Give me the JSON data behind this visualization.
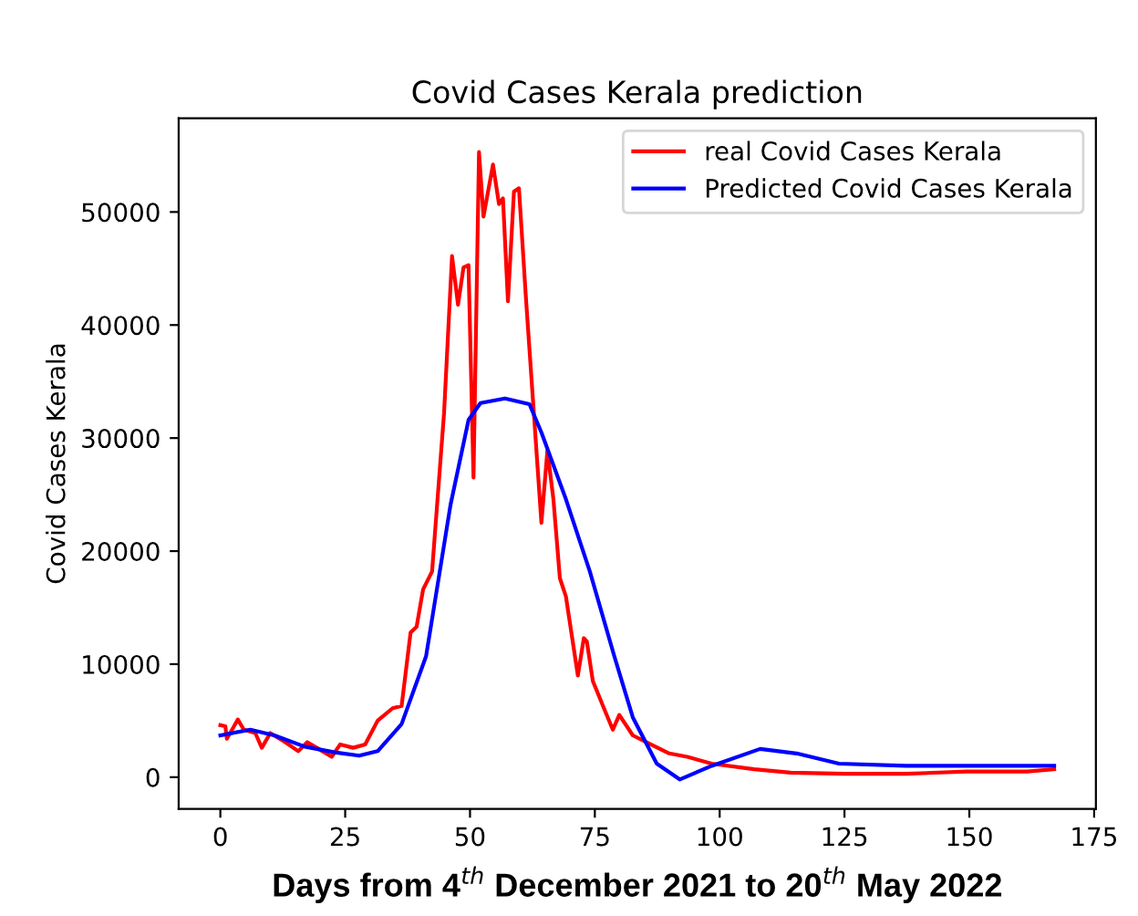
{
  "chart_data": {
    "type": "line",
    "title": "Covid Cases Kerala prediction",
    "xlabel": "Days from 4$^{th}$ December 2021 to 20$^{th}$ May 2022",
    "ylabel": "Covid Cases Kerala",
    "xlim": [
      -8.35,
      175.35
    ],
    "xticks": [
      0,
      25,
      50,
      75,
      100,
      125,
      150,
      175
    ],
    "ylim": [
      -2800,
      58300
    ],
    "yticks": [
      0,
      10000,
      20000,
      30000,
      40000,
      50000
    ],
    "grid": false,
    "legend": "top right",
    "marker": "none",
    "line_style": "solid",
    "series": [
      {
        "name": "real Covid Cases Kerala",
        "color": "#ff0000",
        "x": [
          0,
          1,
          1.3,
          3.5,
          4.7,
          7,
          8.3,
          10,
          13,
          15.6,
          17.4,
          19.3,
          22.3,
          24,
          26.6,
          29,
          31.5,
          34.5,
          36.3,
          38.1,
          39.3,
          40.6,
          42.4,
          44.8,
          46.4,
          47.6,
          48.7,
          49.7,
          50.7,
          51.8,
          52.7,
          54.6,
          55.8,
          56.6,
          57.6,
          58.8,
          59.8,
          61.2,
          64.3,
          65.5,
          66.7,
          68,
          69.2,
          71.6,
          72.8,
          73.4,
          74.6,
          77.1,
          78.6,
          79.9,
          82.6,
          86.2,
          89.9,
          93.5,
          98.4,
          106.9,
          114.2,
          125.1,
          137.3,
          149.5,
          161.6,
          167
        ],
        "values": [
          4600,
          4500,
          3400,
          5100,
          4200,
          3900,
          2600,
          3900,
          3100,
          2300,
          3100,
          2600,
          1800,
          2900,
          2600,
          2900,
          5000,
          6100,
          6300,
          12800,
          13300,
          16600,
          18200,
          32200,
          46100,
          41800,
          45100,
          45300,
          26500,
          55300,
          49600,
          54200,
          50700,
          51200,
          42100,
          51800,
          52100,
          42400,
          22500,
          28900,
          24600,
          17600,
          16000,
          9000,
          12300,
          12000,
          8500,
          5800,
          4200,
          5500,
          3700,
          2900,
          2100,
          1800,
          1200,
          700,
          400,
          300,
          300,
          500,
          500,
          700
        ]
      },
      {
        "name": "Predicted Covid Cases Kerala",
        "color": "#0000ff",
        "x": [
          0,
          6,
          10.8,
          16.9,
          22.9,
          27.8,
          31.5,
          36.3,
          41.2,
          46.1,
          49.7,
          52.1,
          57,
          61.9,
          64.3,
          69.2,
          74,
          78.9,
          82.6,
          87.4,
          92,
          98.4,
          108.1,
          115.4,
          123.9,
          137.3,
          155.5,
          167
        ],
        "values": [
          3700,
          4200,
          3700,
          2700,
          2200,
          1900,
          2300,
          4700,
          10700,
          24100,
          31600,
          33100,
          33500,
          33000,
          30500,
          24600,
          18200,
          10700,
          5300,
          1200,
          -200,
          1000,
          2500,
          2100,
          1200,
          1000,
          1000,
          1000
        ]
      }
    ]
  }
}
